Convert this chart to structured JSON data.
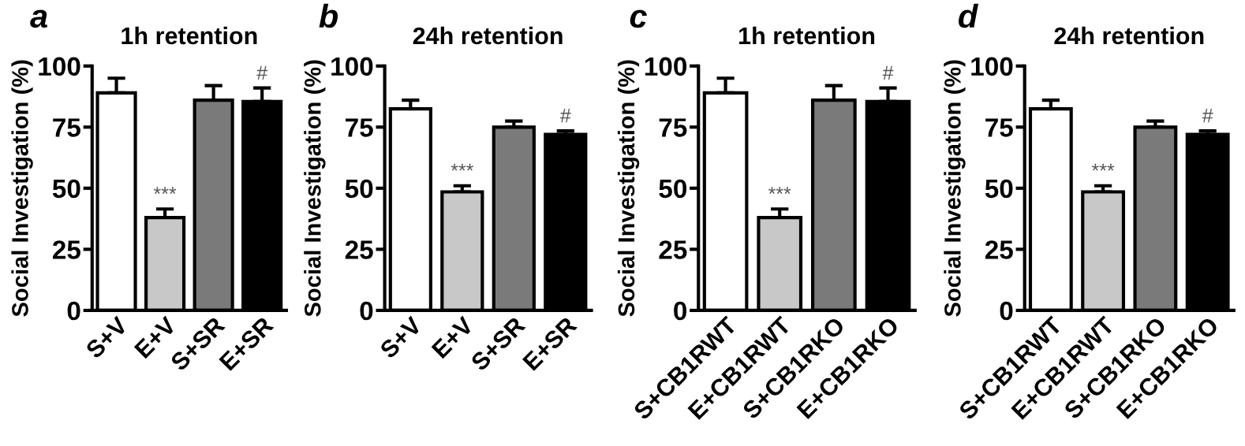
{
  "chart_data": [
    {
      "type": "bar",
      "title": "1h retention",
      "ylabel": "Social Investigation (%)",
      "categories": [
        "S+V",
        "E+V",
        "S+SR",
        "E+SR"
      ],
      "values": [
        89,
        38,
        86,
        85.5
      ],
      "errors": [
        [
          89,
          95
        ],
        [
          38,
          41.5
        ],
        [
          86,
          92
        ],
        [
          85.5,
          91
        ]
      ],
      "colors": [
        "#ffffff",
        "#c8c8c8",
        "#7a7a7a",
        "#000000"
      ],
      "ylim": [
        0,
        100
      ],
      "yticks": [
        0,
        25,
        50,
        75,
        100
      ],
      "annotations": [
        "a",
        {
          "text": "***",
          "x": "E+V",
          "y": 41.5
        },
        {
          "text": "#",
          "x": "E+SR",
          "y": 91
        }
      ]
    },
    {
      "type": "bar",
      "title": "24h retention",
      "ylabel": "Social Investigation (%)",
      "categories": [
        "S+V",
        "E+V",
        "S+SR",
        "E+SR"
      ],
      "values": [
        82.5,
        48.5,
        75,
        72
      ],
      "errors": [
        [
          82.5,
          86
        ],
        [
          48.5,
          51
        ],
        [
          75,
          77.5
        ],
        [
          72,
          73.5
        ]
      ],
      "colors": [
        "#ffffff",
        "#c8c8c8",
        "#7a7a7a",
        "#000000"
      ],
      "ylim": [
        0,
        100
      ],
      "yticks": [
        0,
        25,
        50,
        75,
        100
      ],
      "annotations": [
        "b",
        {
          "text": "***",
          "x": "E+V",
          "y": 51
        },
        {
          "text": "#",
          "x": "E+SR",
          "y": 73.5
        }
      ]
    },
    {
      "type": "bar",
      "title": "1h retention",
      "ylabel": "Social Investigation (%)",
      "categories": [
        "S+CB1RWT",
        "E+CB1RWT",
        "S+CB1RKO",
        "E+CB1RKO"
      ],
      "values": [
        89,
        38,
        86,
        85.5
      ],
      "errors": [
        [
          89,
          95
        ],
        [
          38,
          41.5
        ],
        [
          86,
          92
        ],
        [
          85.5,
          91
        ]
      ],
      "colors": [
        "#ffffff",
        "#c8c8c8",
        "#7a7a7a",
        "#000000"
      ],
      "ylim": [
        0,
        100
      ],
      "yticks": [
        0,
        25,
        50,
        75,
        100
      ],
      "annotations": [
        "c",
        {
          "text": "***",
          "x": "E+CB1RWT",
          "y": 41.5
        },
        {
          "text": "#",
          "x": "E+CB1RKO",
          "y": 91
        }
      ]
    },
    {
      "type": "bar",
      "title": "24h retention",
      "ylabel": "Social Investigation (%)",
      "categories": [
        "S+CB1RWT",
        "E+CB1RWT",
        "S+CB1RKO",
        "E+CB1RKO"
      ],
      "values": [
        82.5,
        48.5,
        75,
        72
      ],
      "errors": [
        [
          82.5,
          86
        ],
        [
          48.5,
          51
        ],
        [
          75,
          77.5
        ],
        [
          72,
          73.5
        ]
      ],
      "colors": [
        "#ffffff",
        "#c8c8c8",
        "#7a7a7a",
        "#000000"
      ],
      "ylim": [
        0,
        100
      ],
      "yticks": [
        0,
        25,
        50,
        75,
        100
      ],
      "annotations": [
        "d",
        {
          "text": "***",
          "x": "E+CB1RWT",
          "y": 51
        },
        {
          "text": "#",
          "x": "E+CB1RKO",
          "y": 73.5
        }
      ]
    }
  ]
}
